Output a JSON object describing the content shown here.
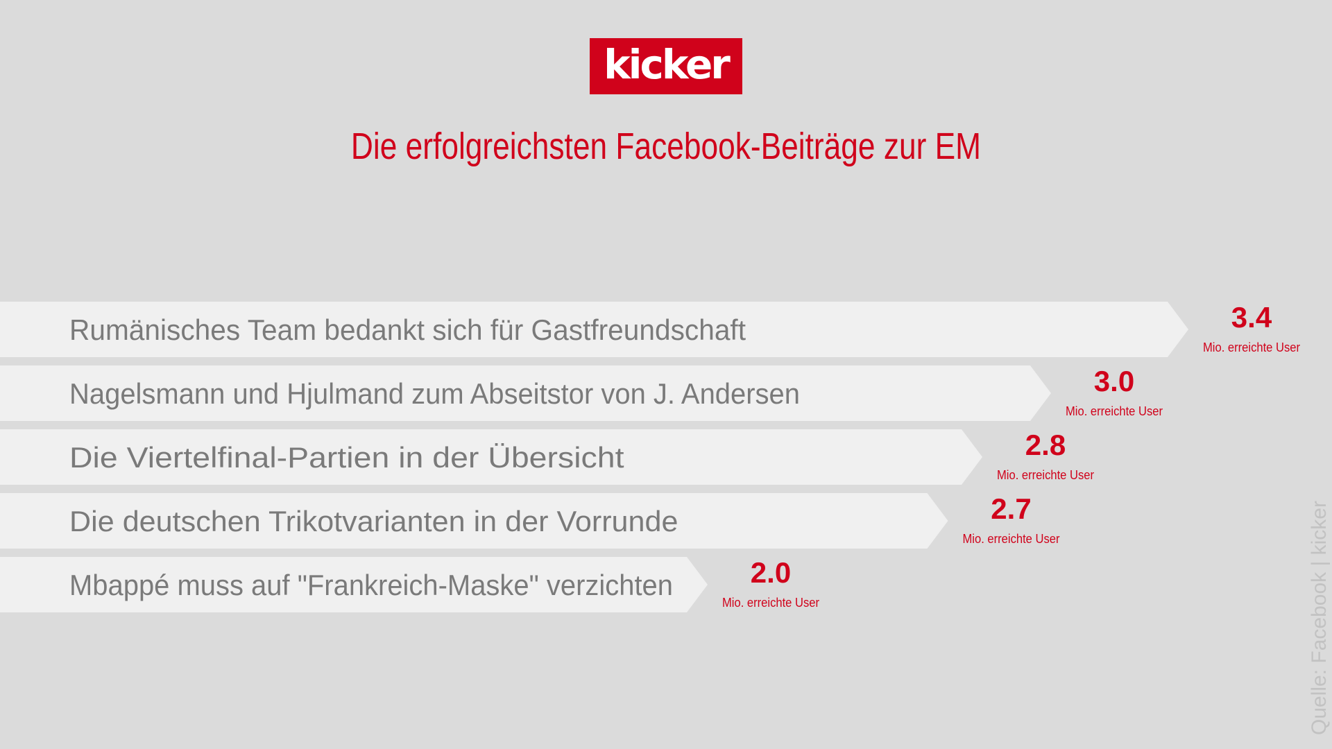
{
  "header": {
    "logo_text": "kicker",
    "title": "Die erfolgreichsten Facebook-Beiträge zur EM"
  },
  "colors": {
    "background": "#dbdbdb",
    "bar": "#f0f0f0",
    "accent": "#d0021b",
    "label_text": "#7a7a7a",
    "source_text": "#c2c2c2"
  },
  "chart_data": {
    "type": "bar",
    "orientation": "horizontal",
    "categories": [
      "Rumänisches Team bedankt sich für Gastfreundschaft",
      "Nagelsmann und Hjulmand zum Abseitstor von J. Andersen",
      "Die Viertelfinal-Partien in der Übersicht",
      "Die deutschen Trikotvarianten in der Vorrunde",
      "Mbappé muss auf \"Frankreich-Maske\" verzichten"
    ],
    "values": [
      3.4,
      3.0,
      2.8,
      2.7,
      2.0
    ],
    "value_labels": [
      "3.4",
      "3.0",
      "2.8",
      "2.7",
      "2.0"
    ],
    "unit_label": "Mio. erreichte User",
    "title": "Die erfolgreichsten Facebook-Beiträge zur EM",
    "xlabel": "",
    "ylabel": "",
    "grid": false,
    "legend": "none"
  },
  "footer": {
    "source": "Quelle: Facebook | kicker"
  }
}
